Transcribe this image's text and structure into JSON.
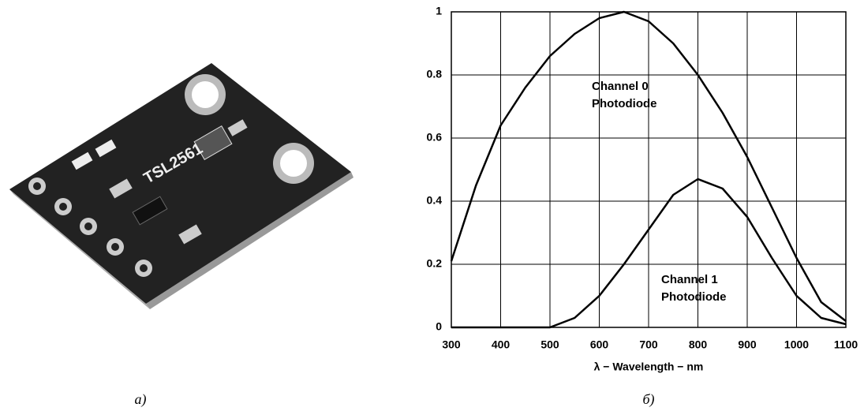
{
  "photo": {
    "board_label": "TSL2561"
  },
  "captions": [
    "а)",
    "б)"
  ],
  "chart_data": {
    "type": "line",
    "xlabel": "λ − Wavelength − nm",
    "x": [
      300,
      350,
      400,
      450,
      500,
      550,
      600,
      650,
      700,
      750,
      800,
      850,
      900,
      950,
      1000,
      1050,
      1100
    ],
    "series": [
      {
        "color": "#000000",
        "values": [
          0.21,
          0.45,
          0.64,
          0.76,
          0.86,
          0.93,
          0.98,
          1.0,
          0.97,
          0.9,
          0.8,
          0.68,
          0.54,
          0.38,
          0.22,
          0.08,
          0.02
        ]
      },
      {
        "color": "#000000",
        "values": [
          0,
          0,
          0,
          0,
          0,
          0.03,
          0.1,
          0.2,
          0.31,
          0.42,
          0.47,
          0.44,
          0.35,
          0.22,
          0.1,
          0.03,
          0.01
        ]
      }
    ],
    "annotations": [
      [
        "Channel 0",
        "Photodiode"
      ],
      [
        "Channel 1",
        "Photodiode"
      ]
    ],
    "xlim": [
      300,
      1100
    ],
    "xticks": [
      300,
      400,
      500,
      600,
      700,
      800,
      900,
      1000,
      1100
    ],
    "ylim": [
      0,
      1
    ],
    "yticks": [
      0,
      0.2,
      0.4,
      0.6,
      0.8,
      1
    ],
    "grid": true
  }
}
